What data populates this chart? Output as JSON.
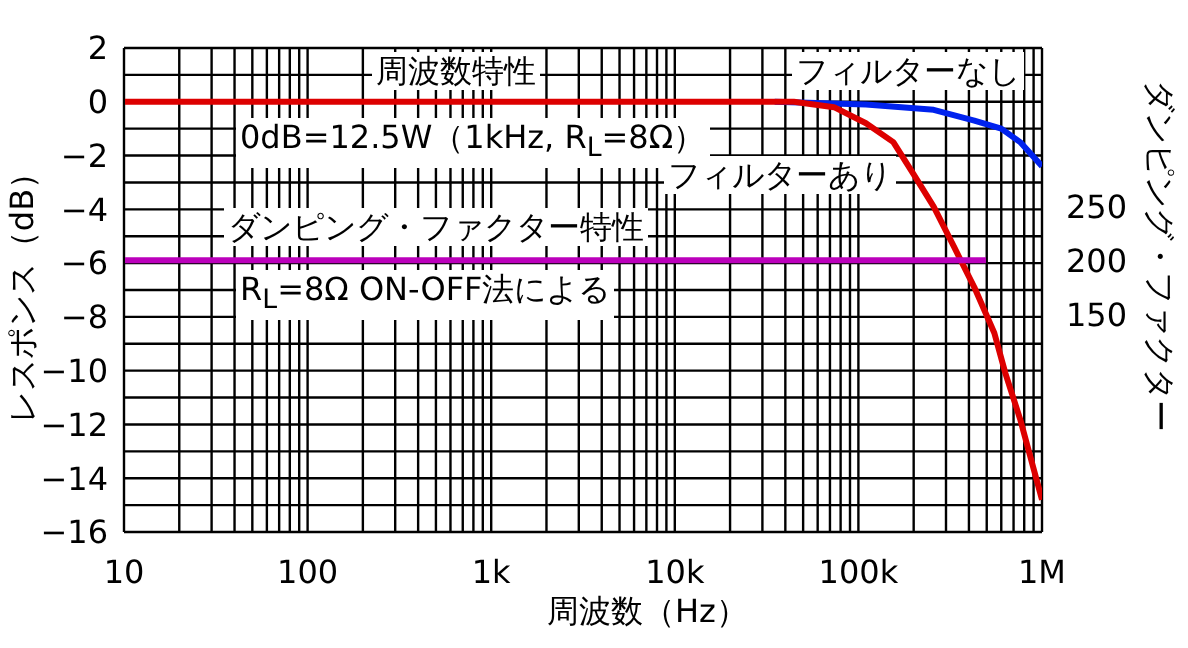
{
  "chart_data": {
    "type": "line",
    "xlabel": "周波数（Hz）",
    "ylabel": "レスポンス（dB）",
    "y2label": "ダンピング・ファクター",
    "annotations": [
      "周波数特性",
      "0dB=12.5W（1kHz, R$_{L}$=8Ω）",
      "ダンピング・ファクター特性",
      "R$_{L}$=8Ω ON-OFF法による"
    ],
    "log": "x",
    "grid": true,
    "legend": false,
    "marker": "none",
    "line_style": "solid",
    "xlim": [
      10,
      1000000
    ],
    "xticks": [
      10,
      {
        "value": 20,
        "label": null
      },
      {
        "value": 30,
        "label": null
      },
      {
        "value": 40,
        "label": null
      },
      {
        "value": 50,
        "label": null
      },
      {
        "value": 60,
        "label": null
      },
      {
        "value": 70,
        "label": null
      },
      {
        "value": 80,
        "label": null
      },
      {
        "value": 90,
        "label": null
      },
      100,
      {
        "value": 200,
        "label": null
      },
      {
        "value": 300,
        "label": null
      },
      {
        "value": 400,
        "label": null
      },
      {
        "value": 500,
        "label": null
      },
      {
        "value": 600,
        "label": null
      },
      {
        "value": 700,
        "label": null
      },
      {
        "value": 800,
        "label": null
      },
      {
        "value": 900,
        "label": null
      },
      {
        "value": 1000,
        "label": "1k"
      },
      {
        "value": 2000,
        "label": null
      },
      {
        "value": 3000,
        "label": null
      },
      {
        "value": 4000,
        "label": null
      },
      {
        "value": 5000,
        "label": null
      },
      {
        "value": 6000,
        "label": null
      },
      {
        "value": 7000,
        "label": null
      },
      {
        "value": 8000,
        "label": null
      },
      {
        "value": 9000,
        "label": null
      },
      {
        "value": 10000,
        "label": "10k"
      },
      {
        "value": 20000,
        "label": null
      },
      {
        "value": 30000,
        "label": null
      },
      {
        "value": 40000,
        "label": null
      },
      {
        "value": 50000,
        "label": null
      },
      {
        "value": 60000,
        "label": null
      },
      {
        "value": 70000,
        "label": null
      },
      {
        "value": 80000,
        "label": null
      },
      {
        "value": 90000,
        "label": null
      },
      {
        "value": 100000,
        "label": "100k"
      },
      {
        "value": 200000,
        "label": null
      },
      {
        "value": 300000,
        "label": null
      },
      {
        "value": 400000,
        "label": null
      },
      {
        "value": 500000,
        "label": null
      },
      {
        "value": 600000,
        "label": null
      },
      {
        "value": 700000,
        "label": null
      },
      {
        "value": 800000,
        "label": null
      },
      {
        "value": 900000,
        "label": null
      },
      {
        "value": 1000000,
        "label": "1M"
      }
    ],
    "ylim": [
      -16,
      2
    ],
    "yticks": [
      -16,
      {
        "value": -15,
        "label": null
      },
      -14,
      {
        "value": -13,
        "label": null
      },
      -12,
      {
        "value": -11,
        "label": null
      },
      -10,
      {
        "value": -9,
        "label": null
      },
      -8,
      {
        "value": -7,
        "label": null
      },
      -6,
      {
        "value": -5,
        "label": null
      },
      -4,
      {
        "value": -3,
        "label": null
      },
      -2,
      {
        "value": -1,
        "label": null
      },
      0,
      {
        "value": 1,
        "label": null
      },
      2
    ],
    "y2lim": [
      -52,
      397
    ],
    "y2ticks": [
      150,
      200,
      250
    ],
    "series": [
      {
        "name": "フィルターなし",
        "color": "#0022ee",
        "x": [
          35000,
          110000,
          257000,
          428000,
          600000,
          760000,
          1000000
        ],
        "values": [
          0,
          -0.1,
          -0.3,
          -0.7,
          -1,
          -1.5,
          -2.4
        ]
      },
      {
        "name": "フィルターあり",
        "color": "#dd0000",
        "x": [
          10,
          44500,
          73600,
          110000,
          155000,
          200000,
          257000,
          332000,
          428000,
          550000,
          632000,
          760000,
          1000000
        ],
        "values": [
          0,
          0,
          -0.2,
          -0.8,
          -1.5,
          -2.7,
          -3.9,
          -5.4,
          -6.9,
          -8.6,
          -10.1,
          -11.8,
          -14.8
        ]
      },
      {
        "color": "#bb00bb",
        "axis": "y2",
        "x": [
          10,
          495000
        ],
        "values": [
          200,
          200
        ]
      }
    ]
  }
}
